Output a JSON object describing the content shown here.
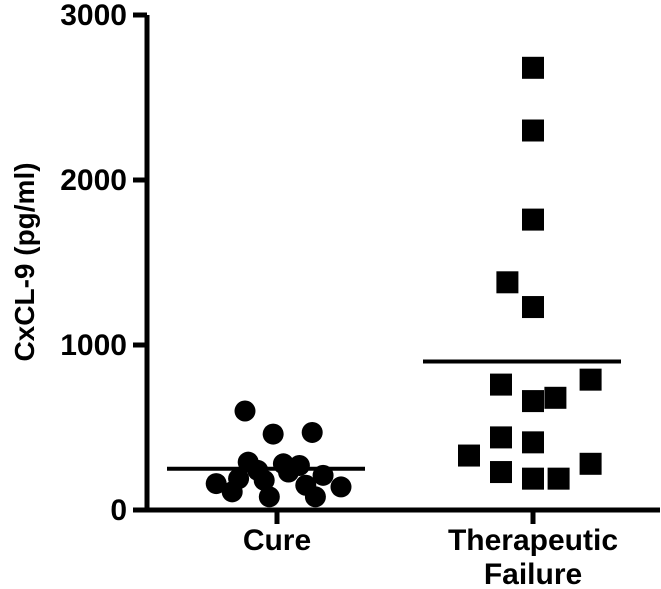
{
  "chart_data": {
    "type": "scatter",
    "ylabel": "CxCL-9 (pg/ml)",
    "xlabel": "",
    "ylim": [
      0,
      3000
    ],
    "y_ticks": [
      "0",
      "1000",
      "2000",
      "3000"
    ],
    "categories": [
      "Cure",
      "Therapeutic Failure"
    ],
    "category_labels": [
      [
        "Cure"
      ],
      [
        "Therapeutic",
        "Failure"
      ]
    ],
    "series": [
      {
        "category": "Cure",
        "marker": "circle",
        "mean": 250,
        "points": [
          {
            "x": -0.5,
            "y": 600
          },
          {
            "x": -0.06,
            "y": 460
          },
          {
            "x": 0.55,
            "y": 470
          },
          {
            "x": -0.45,
            "y": 290
          },
          {
            "x": 0.1,
            "y": 280
          },
          {
            "x": 0.35,
            "y": 270
          },
          {
            "x": -0.3,
            "y": 240
          },
          {
            "x": 0.18,
            "y": 230
          },
          {
            "x": 0.72,
            "y": 210
          },
          {
            "x": -0.95,
            "y": 160
          },
          {
            "x": -0.6,
            "y": 190
          },
          {
            "x": -0.2,
            "y": 180
          },
          {
            "x": 0.45,
            "y": 150
          },
          {
            "x": 1.0,
            "y": 140
          },
          {
            "x": -0.7,
            "y": 110
          },
          {
            "x": -0.12,
            "y": 80
          },
          {
            "x": 0.6,
            "y": 80
          }
        ]
      },
      {
        "category": "Therapeutic Failure",
        "marker": "square",
        "mean": 900,
        "points": [
          {
            "x": 0.0,
            "y": 2680
          },
          {
            "x": 0.0,
            "y": 2300
          },
          {
            "x": 0.0,
            "y": 1760
          },
          {
            "x": -0.4,
            "y": 1380
          },
          {
            "x": 0.0,
            "y": 1230
          },
          {
            "x": 0.9,
            "y": 790
          },
          {
            "x": -0.5,
            "y": 760
          },
          {
            "x": 0.35,
            "y": 680
          },
          {
            "x": 0.0,
            "y": 660
          },
          {
            "x": -0.5,
            "y": 440
          },
          {
            "x": 0.0,
            "y": 410
          },
          {
            "x": -1.0,
            "y": 330
          },
          {
            "x": 0.9,
            "y": 280
          },
          {
            "x": -0.5,
            "y": 230
          },
          {
            "x": 0.0,
            "y": 190
          },
          {
            "x": 0.4,
            "y": 190
          }
        ]
      }
    ],
    "grid": false,
    "legend": "none",
    "colors": {
      "marker": "#000000",
      "axis": "#000000",
      "background": "#ffffff"
    }
  }
}
